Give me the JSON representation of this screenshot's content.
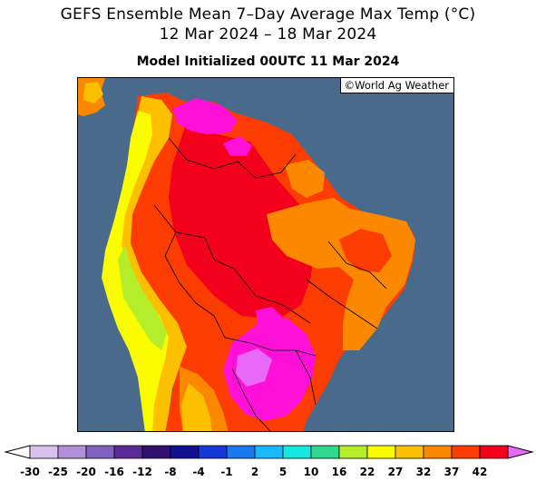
{
  "header": {
    "title_line1": "GEFS Ensemble Mean 7–Day Average Max Temp (°C)",
    "title_line2": "12 Mar 2024 – 18 Mar 2024",
    "subtitle": "Model Initialized 00UTC 11 Mar 2024"
  },
  "map": {
    "region": "South America",
    "credit": "©World Ag Weather",
    "ocean_color": "#4a6a8c"
  },
  "legend": {
    "labels": [
      "-30",
      "-25",
      "-20",
      "-16",
      "-12",
      "-8",
      "-4",
      "-1",
      "2",
      "5",
      "10",
      "16",
      "22",
      "27",
      "32",
      "37",
      "42"
    ],
    "colors": [
      "#d8c2ec",
      "#b090d8",
      "#8060c0",
      "#5a2b96",
      "#301070",
      "#121090",
      "#1638d8",
      "#1a78f0",
      "#19b8f8",
      "#14e8e0",
      "#30d890",
      "#b4ee2a",
      "#fcfc00",
      "#fcc000",
      "#fc8800",
      "#fc3c00",
      "#f2001c",
      "#ff10d8",
      "#e868f8"
    ]
  }
}
